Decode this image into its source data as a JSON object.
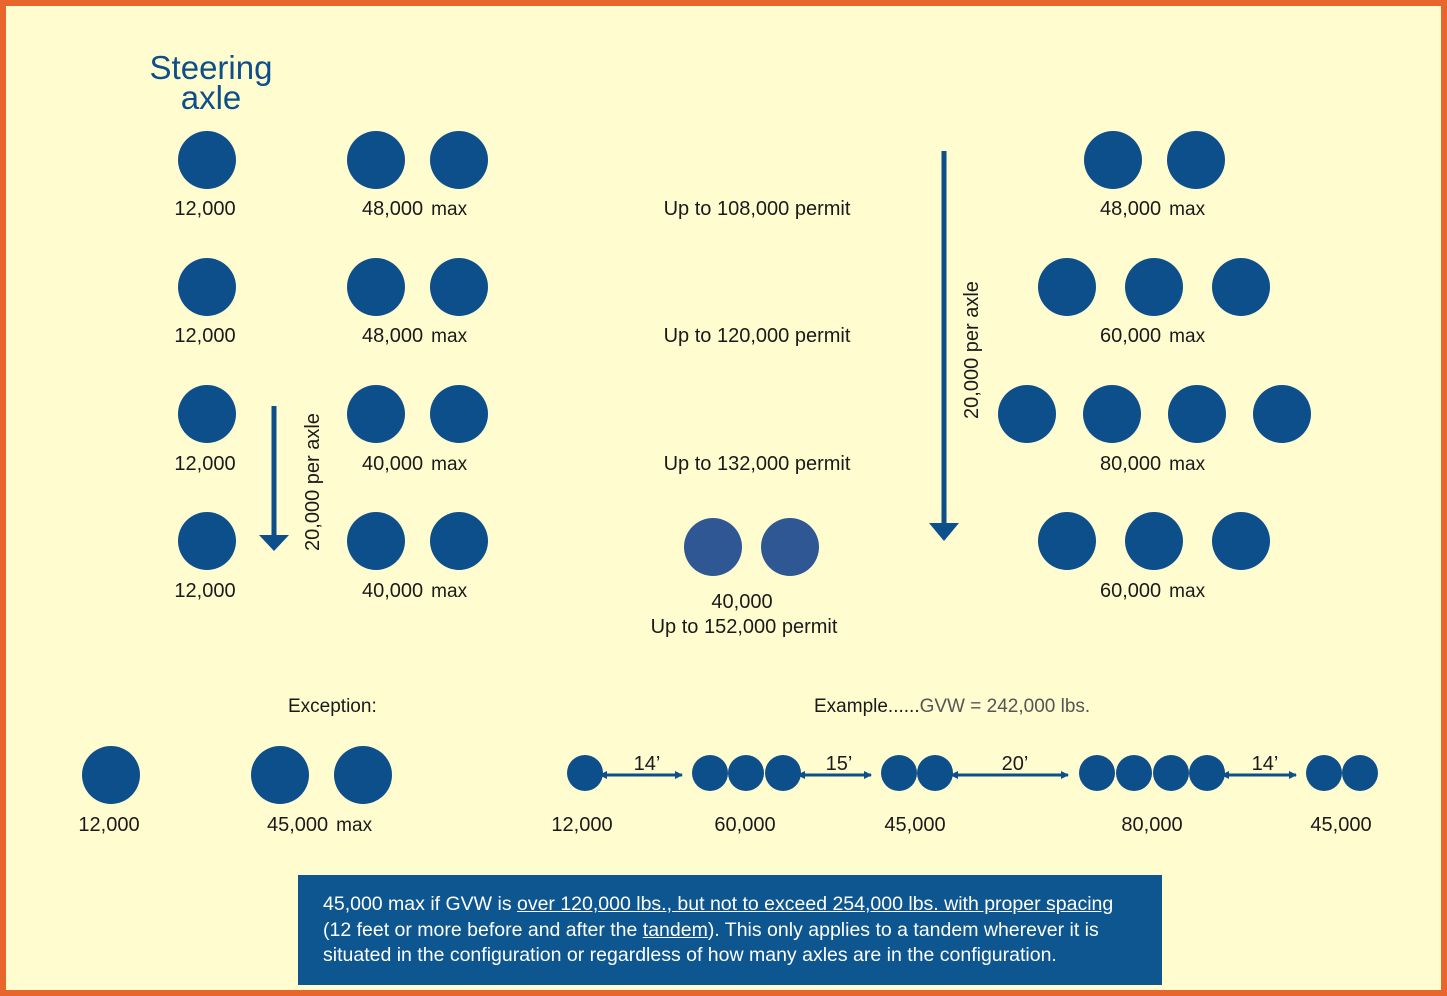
{
  "steering_label": [
    "Steering",
    "axle"
  ],
  "rows": [
    {
      "steer": "12,000",
      "tandem": "48,000",
      "max": "max",
      "permit": "Up to 108,000 permit",
      "right": "48,000",
      "right_max": "max"
    },
    {
      "steer": "12,000",
      "tandem": "48,000",
      "max": "max",
      "permit": "Up to 120,000 permit",
      "right": "60,000",
      "right_max": "max"
    },
    {
      "steer": "12,000",
      "tandem": "40,000",
      "max": "max",
      "permit": "Up to 132,000 permit",
      "right": "80,000",
      "right_max": "max"
    },
    {
      "steer": "12,000",
      "tandem": "40,000",
      "max": "max",
      "right": "60,000",
      "right_max": "max"
    }
  ],
  "center_group": {
    "weight": "40,000",
    "permit": "Up to 152,000 permit"
  },
  "per_axle_left": "20,000 per axle",
  "per_axle_right": "20,000 per axle",
  "exception": {
    "heading": "Exception:",
    "steer": "12,000",
    "tandem": "45,000",
    "max": "max"
  },
  "example": {
    "heading": "Example",
    "dots": "......",
    "gvw": "GVW = 242,000 lbs.",
    "weights": [
      "12,000",
      "60,000",
      "45,000",
      "80,000",
      "45,000"
    ],
    "spacings": [
      "14’",
      "15’",
      "20’",
      "14’"
    ]
  },
  "note": {
    "prefix": "45,000 max if GVW is ",
    "underlined": "over 120,000 lbs., but not to exceed 254,000 lbs. with proper spacing",
    "mid": "(12 feet or more before and after the ",
    "tandem": "tandem",
    "suffix": "). This only applies to a tandem wherever it is situated in the configuration or regardless of how many axles are in the configuration."
  },
  "colors": {
    "border": "#e8652b",
    "background": "#fffcd0",
    "axle": "#0d4f8b",
    "note_bg": "#0d5690"
  }
}
